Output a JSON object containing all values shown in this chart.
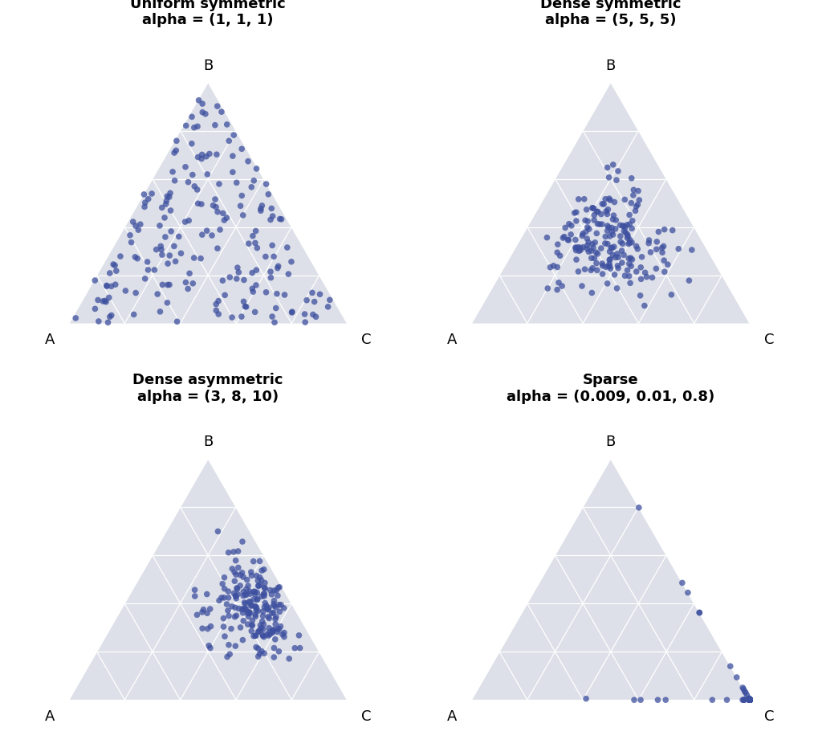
{
  "panels": [
    {
      "title": "Uniform symmetric",
      "subtitle": "alpha = (1, 1, 1)",
      "alpha": [
        1,
        1,
        1
      ],
      "n_samples": 200,
      "seed": 42
    },
    {
      "title": "Dense symmetric",
      "subtitle": "alpha = (5, 5, 5)",
      "alpha": [
        5,
        5,
        5
      ],
      "n_samples": 200,
      "seed": 43
    },
    {
      "title": "Dense asymmetric",
      "subtitle": "alpha = (3, 8, 10)",
      "alpha": [
        3,
        8,
        10
      ],
      "n_samples": 200,
      "seed": 44
    },
    {
      "title": "Sparse",
      "subtitle": "alpha = (0.009, 0.01, 0.8)",
      "alpha": [
        0.009,
        0.01,
        0.8
      ],
      "n_samples": 200,
      "seed": 45
    }
  ],
  "dot_color": "#3d4f9f",
  "dot_alpha": 0.75,
  "dot_size": 30,
  "triangle_bg_color": "#dde0e8",
  "triangle_line_color": "#ffffff",
  "title_fontsize": 13,
  "label_fontsize": 13,
  "n_grid": 5,
  "fig_width": 10.2,
  "fig_height": 9.41
}
